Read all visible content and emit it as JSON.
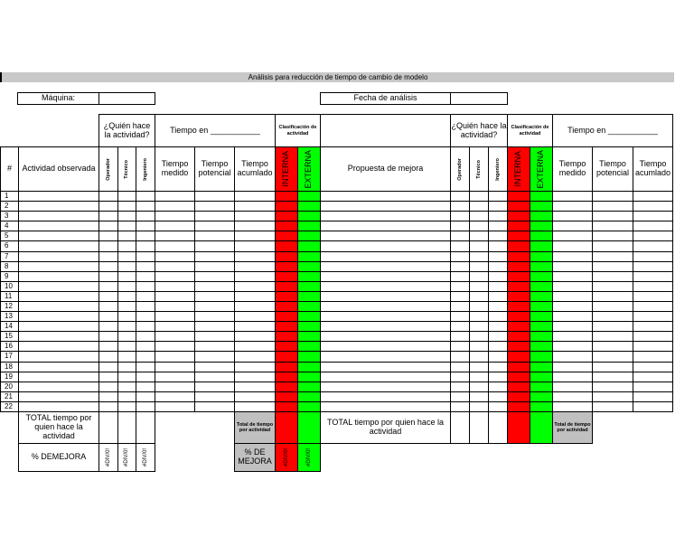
{
  "title": "Análisis para reducción de tiempo de cambio de modelo",
  "maquina_label": "Máquina:",
  "maquina_value": "",
  "fecha_label": "Fecha de análisis",
  "fecha_value": "",
  "headers": {
    "quien": "¿Quién hace la actividad?",
    "tiempo_en": "Tiempo en ___________",
    "clasificacion": "Clasificación de actividad",
    "num": "#",
    "actividad": "Actividad observada",
    "propuesta": "Propuesta de mejora",
    "operador": "Operador",
    "tecnico": "Técnico",
    "ingeniero": "Ingeniero",
    "medido": "Tiempo medido",
    "potencial": "Tiempo potencial",
    "acumulado": "Tiempo acumlado",
    "interna": "INTERNA",
    "externa": "EXTERNA"
  },
  "rows": [
    "1",
    "2",
    "3",
    "4",
    "5",
    "6",
    "7",
    "8",
    "9",
    "10",
    "11",
    "12",
    "13",
    "14",
    "15",
    "16",
    "17",
    "18",
    "19",
    "20",
    "21",
    "22"
  ],
  "footer": {
    "total_quien": "TOTAL tiempo por quien hace la actividad",
    "total_actividad": "Total de tiempo por actividad",
    "pct_mejora": "% DE MEJORA",
    "pct_mejora_left": "% DEMEJORA",
    "div0": "#DIV/0!"
  },
  "colors": {
    "interna": "#ff0000",
    "externa": "#00ff00",
    "gray": "#c0c0c0"
  }
}
